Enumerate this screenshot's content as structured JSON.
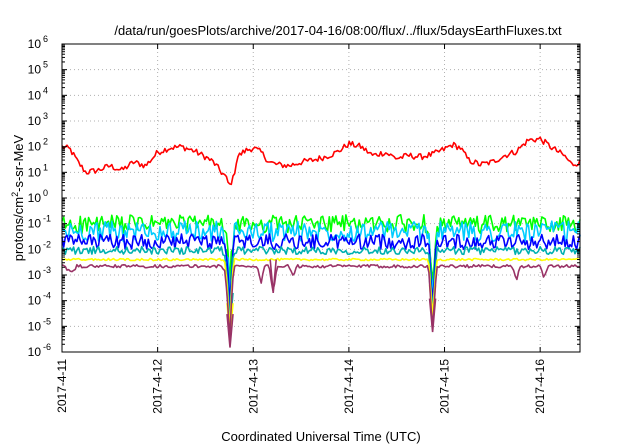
{
  "chart_data": {
    "type": "line",
    "title": "/data/run/goesPlots/archive/2017-04-16/08:00/flux/../flux/5daysEarthFluxes.txt",
    "xlabel": "Coordinated Universal Time (UTC)",
    "ylabel": {
      "prefix": "protons/cm",
      "sup": "2",
      "suffix": "-s-sr-MeV"
    },
    "yscale": "log",
    "ylim": [
      1e-06,
      1000000.0
    ],
    "xlim": [
      "2017-04-11",
      "2017-04-16 10:00"
    ],
    "grid": true,
    "xticks": [
      {
        "date": "2017-04-11",
        "label": "2017-4-11"
      },
      {
        "date": "2017-04-12",
        "label": "2017-4-12"
      },
      {
        "date": "2017-04-13",
        "label": "2017-4-13"
      },
      {
        "date": "2017-04-14",
        "label": "2017-4-14"
      },
      {
        "date": "2017-04-15",
        "label": "2017-4-15"
      },
      {
        "date": "2017-04-16",
        "label": "2017-4-16"
      }
    ],
    "yticks": [
      {
        "value": 1e-06,
        "base": "10",
        "exp": "-6"
      },
      {
        "value": 1e-05,
        "base": "10",
        "exp": "-5"
      },
      {
        "value": 0.0001,
        "base": "10",
        "exp": "-4"
      },
      {
        "value": 0.001,
        "base": "10",
        "exp": "-3"
      },
      {
        "value": 0.01,
        "base": "10",
        "exp": "-2"
      },
      {
        "value": 0.1,
        "base": "10",
        "exp": "-1"
      },
      {
        "value": 1,
        "base": "10",
        "exp": "0"
      },
      {
        "value": 10,
        "base": "10",
        "exp": "1"
      },
      {
        "value": 100,
        "base": "10",
        "exp": "2"
      },
      {
        "value": 1000,
        "base": "10",
        "exp": "3"
      },
      {
        "value": 10000,
        "base": "10",
        "exp": "4"
      },
      {
        "value": 100000,
        "base": "10",
        "exp": "5"
      },
      {
        "value": 1000000,
        "base": "10",
        "exp": "6"
      }
    ],
    "series": [
      {
        "color": "#ff0000",
        "base": 20,
        "noise": 0.12,
        "points": [
          [
            "2017-04-11 00:00",
            100
          ],
          [
            "2017-04-11 02:00",
            80
          ],
          [
            "2017-04-11 04:00",
            25
          ],
          [
            "2017-04-11 06:00",
            10
          ],
          [
            "2017-04-11 09:00",
            12
          ],
          [
            "2017-04-11 12:00",
            18
          ],
          [
            "2017-04-11 15:00",
            12
          ],
          [
            "2017-04-11 18:00",
            25
          ],
          [
            "2017-04-11 21:00",
            18
          ],
          [
            "2017-04-12 00:00",
            60
          ],
          [
            "2017-04-12 03:00",
            90
          ],
          [
            "2017-04-12 06:00",
            100
          ],
          [
            "2017-04-12 09:00",
            70
          ],
          [
            "2017-04-12 12:00",
            40
          ],
          [
            "2017-04-12 14:00",
            25
          ],
          [
            "2017-04-12 16:00",
            10
          ],
          [
            "2017-04-12 17:00",
            7
          ],
          [
            "2017-04-12 18:00",
            3
          ],
          [
            "2017-04-12 19:00",
            6
          ],
          [
            "2017-04-12 20:00",
            40
          ],
          [
            "2017-04-12 22:00",
            70
          ],
          [
            "2017-04-13 00:00",
            90
          ],
          [
            "2017-04-13 02:00",
            60
          ],
          [
            "2017-04-13 04:00",
            25
          ],
          [
            "2017-04-13 06:00",
            20
          ],
          [
            "2017-04-13 09:00",
            18
          ],
          [
            "2017-04-13 12:00",
            25
          ],
          [
            "2017-04-13 15:00",
            30
          ],
          [
            "2017-04-13 18:00",
            40
          ],
          [
            "2017-04-13 21:00",
            60
          ],
          [
            "2017-04-14 00:00",
            130
          ],
          [
            "2017-04-14 03:00",
            100
          ],
          [
            "2017-04-14 06:00",
            45
          ],
          [
            "2017-04-14 09:00",
            60
          ],
          [
            "2017-04-14 12:00",
            35
          ],
          [
            "2017-04-14 15:00",
            45
          ],
          [
            "2017-04-14 18:00",
            40
          ],
          [
            "2017-04-14 21:00",
            50
          ],
          [
            "2017-04-15 00:00",
            80
          ],
          [
            "2017-04-15 02:00",
            120
          ],
          [
            "2017-04-15 04:00",
            90
          ],
          [
            "2017-04-15 06:00",
            30
          ],
          [
            "2017-04-15 09:00",
            20
          ],
          [
            "2017-04-15 12:00",
            25
          ],
          [
            "2017-04-15 15:00",
            45
          ],
          [
            "2017-04-15 18:00",
            65
          ],
          [
            "2017-04-15 21:00",
            180
          ],
          [
            "2017-04-16 00:00",
            200
          ],
          [
            "2017-04-16 03:00",
            90
          ],
          [
            "2017-04-16 06:00",
            45
          ],
          [
            "2017-04-16 08:00",
            20
          ],
          [
            "2017-04-16 10:00",
            25
          ]
        ]
      },
      {
        "color": "#00ff00",
        "base": 0.1,
        "noise": 0.35,
        "points": [
          [
            "2017-04-11 00:00",
            0.09
          ],
          [
            "2017-04-12 00:00",
            0.1
          ],
          [
            "2017-04-12 16:00",
            0.1
          ],
          [
            "2017-04-12 17:00",
            0.05
          ],
          [
            "2017-04-12 17:40",
            0.005
          ],
          [
            "2017-04-12 18:10",
            0.0005
          ],
          [
            "2017-04-12 18:40",
            0.01
          ],
          [
            "2017-04-12 19:20",
            0.08
          ],
          [
            "2017-04-13 00:00",
            0.1
          ],
          [
            "2017-04-14 00:00",
            0.1
          ],
          [
            "2017-04-14 20:00",
            0.1
          ],
          [
            "2017-04-14 21:00",
            0.0005
          ],
          [
            "2017-04-14 22:00",
            0.09
          ],
          [
            "2017-04-16 10:00",
            0.1
          ]
        ]
      },
      {
        "color": "#00ccff",
        "base": 0.05,
        "noise": 0.4,
        "points": [
          [
            "2017-04-11 00:00",
            0.05
          ],
          [
            "2017-04-12 16:00",
            0.05
          ],
          [
            "2017-04-12 17:00",
            0.03
          ],
          [
            "2017-04-12 17:40",
            0.002
          ],
          [
            "2017-04-12 18:10",
            0.0001
          ],
          [
            "2017-04-12 18:40",
            0.005
          ],
          [
            "2017-04-12 19:20",
            0.05
          ],
          [
            "2017-04-14 20:00",
            0.05
          ],
          [
            "2017-04-14 21:00",
            0.0002
          ],
          [
            "2017-04-14 22:00",
            0.05
          ],
          [
            "2017-04-16 10:00",
            0.05
          ]
        ]
      },
      {
        "color": "#0000ff",
        "base": 0.02,
        "noise": 0.3,
        "points": [
          [
            "2017-04-11 00:00",
            0.02
          ],
          [
            "2017-04-12 16:00",
            0.02
          ],
          [
            "2017-04-12 17:00",
            0.01
          ],
          [
            "2017-04-12 17:40",
            0.001
          ],
          [
            "2017-04-12 18:10",
            5e-05
          ],
          [
            "2017-04-12 18:40",
            0.003
          ],
          [
            "2017-04-12 19:20",
            0.02
          ],
          [
            "2017-04-14 20:00",
            0.02
          ],
          [
            "2017-04-14 21:00",
            0.0001
          ],
          [
            "2017-04-14 22:00",
            0.02
          ],
          [
            "2017-04-16 10:00",
            0.02
          ]
        ]
      },
      {
        "color": "#00b0b0",
        "base": 0.009,
        "noise": 0.15,
        "points": [
          [
            "2017-04-11 00:00",
            0.009
          ],
          [
            "2017-04-12 16:00",
            0.009
          ],
          [
            "2017-04-12 17:00",
            0.005
          ],
          [
            "2017-04-12 17:40",
            0.0003
          ],
          [
            "2017-04-12 18:10",
            1e-05
          ],
          [
            "2017-04-12 18:40",
            0.002
          ],
          [
            "2017-04-12 19:20",
            0.009
          ],
          [
            "2017-04-14 20:00",
            0.009
          ],
          [
            "2017-04-14 21:00",
            3e-05
          ],
          [
            "2017-04-14 22:00",
            0.009
          ],
          [
            "2017-04-16 10:00",
            0.009
          ]
        ]
      },
      {
        "color": "#ffff00",
        "base": 0.004,
        "noise": 0.04,
        "points": [
          [
            "2017-04-11 00:00",
            0.004
          ],
          [
            "2017-04-12 16:00",
            0.004
          ],
          [
            "2017-04-12 17:00",
            0.003
          ],
          [
            "2017-04-12 17:40",
            0.0001
          ],
          [
            "2017-04-12 18:10",
            4e-06
          ],
          [
            "2017-04-12 18:40",
            0.001
          ],
          [
            "2017-04-12 19:20",
            0.004
          ],
          [
            "2017-04-14 20:00",
            0.004
          ],
          [
            "2017-04-14 21:00",
            2e-05
          ],
          [
            "2017-04-14 22:00",
            0.004
          ],
          [
            "2017-04-16 10:00",
            0.004
          ]
        ]
      },
      {
        "color": "#993366",
        "base": 0.0022,
        "noise": 0.06,
        "points": [
          [
            "2017-04-11 00:00",
            0.0022
          ],
          [
            "2017-04-11 03:00",
            0.0013
          ],
          [
            "2017-04-11 03:40",
            0.0022
          ],
          [
            "2017-04-12 16:00",
            0.0022
          ],
          [
            "2017-04-12 17:00",
            0.0012
          ],
          [
            "2017-04-12 17:40",
            5e-05
          ],
          [
            "2017-04-12 18:10",
            1.5e-06
          ],
          [
            "2017-04-12 18:40",
            0.0005
          ],
          [
            "2017-04-12 19:20",
            0.0022
          ],
          [
            "2017-04-13 01:00",
            0.0022
          ],
          [
            "2017-04-13 02:00",
            0.0005
          ],
          [
            "2017-04-13 02:40",
            0.0022
          ],
          [
            "2017-04-13 04:00",
            0.0022
          ],
          [
            "2017-04-13 05:00",
            0.0002
          ],
          [
            "2017-04-13 06:00",
            0.0022
          ],
          [
            "2017-04-13 09:00",
            0.0022
          ],
          [
            "2017-04-13 10:00",
            0.0008
          ],
          [
            "2017-04-13 11:00",
            0.0022
          ],
          [
            "2017-04-14 20:00",
            0.0022
          ],
          [
            "2017-04-14 21:00",
            6e-06
          ],
          [
            "2017-04-14 22:00",
            0.0022
          ],
          [
            "2017-04-15 17:00",
            0.0022
          ],
          [
            "2017-04-15 18:00",
            0.0006
          ],
          [
            "2017-04-15 19:00",
            0.0022
          ],
          [
            "2017-04-16 00:00",
            0.0022
          ],
          [
            "2017-04-16 01:00",
            0.0007
          ],
          [
            "2017-04-16 02:00",
            0.0022
          ],
          [
            "2017-04-16 10:00",
            0.0022
          ]
        ]
      }
    ]
  }
}
